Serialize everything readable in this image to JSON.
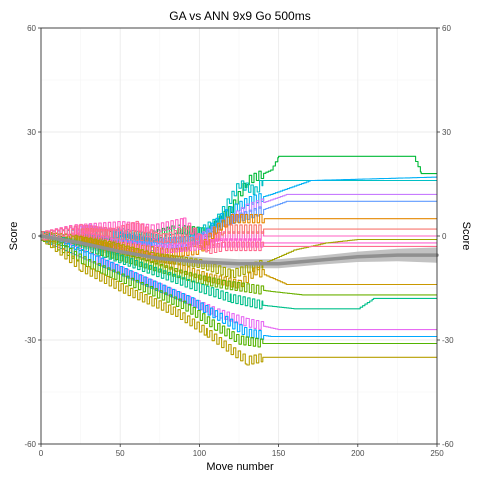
{
  "chart_data": {
    "type": "line",
    "title": "GA vs ANN 9x9 Go 500ms",
    "xlabel": "Move number",
    "ylabel": "Score",
    "ylabel_right": "Score",
    "xlim": [
      0,
      250
    ],
    "ylim": [
      -60,
      60
    ],
    "x_ticks": [
      0,
      50,
      100,
      150,
      200,
      250
    ],
    "x_tick_labels": [
      "0",
      "50",
      "100",
      "150",
      "200",
      "250"
    ],
    "y_ticks": [
      60,
      30,
      0,
      -30,
      -60
    ],
    "y_tick_labels": [
      "60",
      "30",
      "0",
      "-30",
      "-60"
    ],
    "grid": true,
    "legend": "none",
    "series": [
      {
        "color": "#00BA38",
        "points": [
          [
            0,
            0
          ],
          [
            30,
            1
          ],
          [
            60,
            -1
          ],
          [
            85,
            2
          ],
          [
            105,
            1
          ],
          [
            120,
            8
          ],
          [
            130,
            16
          ],
          [
            145,
            19
          ],
          [
            150,
            23
          ],
          [
            235,
            23
          ],
          [
            240,
            18
          ],
          [
            250,
            18
          ]
        ]
      },
      {
        "color": "#00BFC4",
        "points": [
          [
            0,
            0
          ],
          [
            25,
            -1
          ],
          [
            50,
            1
          ],
          [
            75,
            -1
          ],
          [
            95,
            0
          ],
          [
            110,
            4
          ],
          [
            125,
            15
          ],
          [
            135,
            13
          ],
          [
            140,
            16
          ],
          [
            250,
            16
          ]
        ]
      },
      {
        "color": "#00B0F6",
        "points": [
          [
            0,
            0
          ],
          [
            40,
            1
          ],
          [
            70,
            -2
          ],
          [
            100,
            -1
          ],
          [
            115,
            6
          ],
          [
            130,
            10
          ],
          [
            145,
            12
          ],
          [
            170,
            16
          ],
          [
            250,
            17
          ]
        ]
      },
      {
        "color": "#C77CFF",
        "points": [
          [
            0,
            0
          ],
          [
            30,
            2
          ],
          [
            60,
            -1
          ],
          [
            90,
            -3
          ],
          [
            110,
            2
          ],
          [
            130,
            8
          ],
          [
            155,
            12
          ],
          [
            250,
            12
          ]
        ]
      },
      {
        "color": "#619CFF",
        "points": [
          [
            0,
            0
          ],
          [
            35,
            -2
          ],
          [
            70,
            -3
          ],
          [
            100,
            -1
          ],
          [
            115,
            4
          ],
          [
            130,
            6
          ],
          [
            155,
            10
          ],
          [
            250,
            10
          ]
        ]
      },
      {
        "color": "#FF61C3",
        "points": [
          [
            0,
            0
          ],
          [
            20,
            2
          ],
          [
            50,
            3
          ],
          [
            70,
            2
          ],
          [
            90,
            4
          ],
          [
            100,
            -1
          ],
          [
            115,
            0
          ],
          [
            250,
            0
          ]
        ]
      },
      {
        "color": "#F8766D",
        "points": [
          [
            0,
            0
          ],
          [
            30,
            1
          ],
          [
            60,
            0
          ],
          [
            90,
            -1
          ],
          [
            105,
            -3
          ],
          [
            115,
            2
          ],
          [
            250,
            2
          ]
        ]
      },
      {
        "color": "#E58700",
        "points": [
          [
            0,
            0
          ],
          [
            25,
            -1
          ],
          [
            50,
            -3
          ],
          [
            80,
            -5
          ],
          [
            100,
            -4
          ],
          [
            110,
            2
          ],
          [
            120,
            5
          ],
          [
            250,
            5
          ]
        ]
      },
      {
        "color": "#FD61D1",
        "points": [
          [
            0,
            0
          ],
          [
            20,
            1
          ],
          [
            45,
            -2
          ],
          [
            70,
            -4
          ],
          [
            95,
            -3
          ],
          [
            110,
            -2
          ],
          [
            250,
            -2
          ]
        ]
      },
      {
        "color": "#A3A500",
        "points": [
          [
            0,
            0
          ],
          [
            20,
            -1
          ],
          [
            45,
            -3
          ],
          [
            70,
            -6
          ],
          [
            100,
            -8
          ],
          [
            120,
            -11
          ],
          [
            140,
            -8
          ],
          [
            160,
            -4
          ],
          [
            180,
            -2
          ],
          [
            200,
            -1
          ],
          [
            250,
            -1
          ]
        ]
      },
      {
        "color": "#C99800",
        "points": [
          [
            0,
            0
          ],
          [
            30,
            -2
          ],
          [
            60,
            -5
          ],
          [
            85,
            -9
          ],
          [
            105,
            -12
          ],
          [
            125,
            -14
          ],
          [
            135,
            -10
          ],
          [
            145,
            -12
          ],
          [
            155,
            -14
          ],
          [
            250,
            -14
          ]
        ]
      },
      {
        "color": "#6BB100",
        "points": [
          [
            0,
            0
          ],
          [
            35,
            -4
          ],
          [
            65,
            -8
          ],
          [
            95,
            -12
          ],
          [
            115,
            -14
          ],
          [
            130,
            -15
          ],
          [
            145,
            -16
          ],
          [
            165,
            -17
          ],
          [
            250,
            -17
          ]
        ]
      },
      {
        "color": "#00C08B",
        "points": [
          [
            0,
            0
          ],
          [
            40,
            -5
          ],
          [
            70,
            -10
          ],
          [
            100,
            -15
          ],
          [
            120,
            -18
          ],
          [
            140,
            -20
          ],
          [
            160,
            -21
          ],
          [
            200,
            -21
          ],
          [
            210,
            -18
          ],
          [
            250,
            -18
          ]
        ]
      },
      {
        "color": "#E76BF3",
        "points": [
          [
            0,
            0
          ],
          [
            30,
            -6
          ],
          [
            60,
            -12
          ],
          [
            90,
            -18
          ],
          [
            110,
            -22
          ],
          [
            130,
            -25
          ],
          [
            150,
            -27
          ],
          [
            250,
            -27
          ]
        ]
      },
      {
        "color": "#00A9FF",
        "points": [
          [
            0,
            0
          ],
          [
            35,
            -7
          ],
          [
            65,
            -13
          ],
          [
            95,
            -19
          ],
          [
            115,
            -24
          ],
          [
            130,
            -28
          ],
          [
            145,
            -29
          ],
          [
            250,
            -29
          ]
        ]
      },
      {
        "color": "#53B400",
        "points": [
          [
            0,
            0
          ],
          [
            30,
            -8
          ],
          [
            60,
            -14
          ],
          [
            90,
            -20
          ],
          [
            110,
            -26
          ],
          [
            125,
            -30
          ],
          [
            140,
            -31
          ],
          [
            250,
            -31
          ]
        ]
      },
      {
        "color": "#B79F00",
        "points": [
          [
            0,
            0
          ],
          [
            25,
            -9
          ],
          [
            55,
            -16
          ],
          [
            85,
            -22
          ],
          [
            105,
            -28
          ],
          [
            120,
            -33
          ],
          [
            130,
            -36
          ],
          [
            140,
            -35
          ],
          [
            250,
            -35
          ]
        ]
      },
      {
        "color": "#FF6C91",
        "points": [
          [
            0,
            0
          ],
          [
            25,
            2
          ],
          [
            45,
            1
          ],
          [
            60,
            3
          ],
          [
            75,
            -1
          ],
          [
            95,
            2
          ],
          [
            105,
            -4
          ],
          [
            115,
            -3
          ],
          [
            250,
            -3
          ]
        ]
      }
    ],
    "smooth": {
      "color": "#909090",
      "points": [
        [
          0,
          0
        ],
        [
          25,
          -2
        ],
        [
          50,
          -4.5
        ],
        [
          75,
          -6.5
        ],
        [
          100,
          -7.5
        ],
        [
          125,
          -8
        ],
        [
          150,
          -8
        ],
        [
          175,
          -7
        ],
        [
          200,
          -6
        ],
        [
          225,
          -5.5
        ],
        [
          250,
          -5.5
        ]
      ],
      "band": [
        [
          0,
          1
        ],
        [
          25,
          1.3
        ],
        [
          50,
          1.4
        ],
        [
          75,
          1.4
        ],
        [
          100,
          1.4
        ],
        [
          125,
          1.3
        ],
        [
          150,
          1.3
        ],
        [
          175,
          1.3
        ],
        [
          200,
          1.5
        ],
        [
          225,
          1.8
        ],
        [
          250,
          2.2
        ]
      ]
    }
  }
}
